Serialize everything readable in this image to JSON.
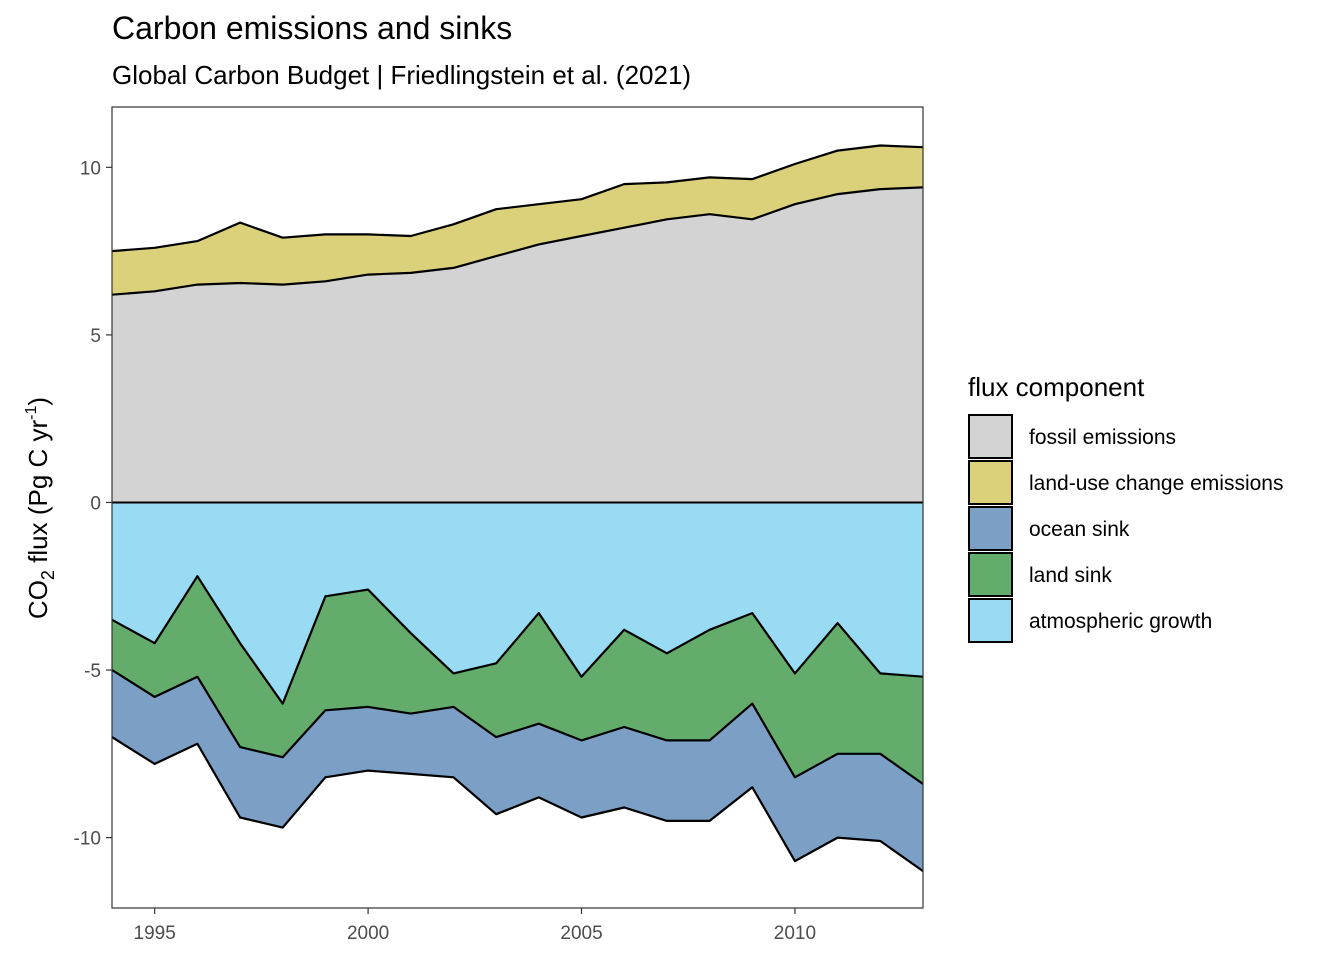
{
  "title": "Carbon emissions and sinks",
  "subtitle": "Global Carbon Budget | Friedlingstein et al. (2021)",
  "chart_data": {
    "type": "area",
    "title": "Carbon emissions and sinks",
    "subtitle": "Global Carbon Budget | Friedlingstein et al. (2021)",
    "xlabel": "",
    "ylabel": "CO2 flux (Pg C yr-1)",
    "ylabel_parts": {
      "main": "CO",
      "sub": "2",
      "mid": " flux (Pg C yr",
      "sup": "-1",
      "end": ")"
    },
    "xlim": [
      1994,
      2013
    ],
    "ylim": [
      -12.1,
      11.8
    ],
    "x_ticks": [
      1995,
      2000,
      2005,
      2010
    ],
    "y_ticks": [
      -10,
      -5,
      0,
      5,
      10
    ],
    "grid": false,
    "legend_title": "flux component",
    "legend_position": "right",
    "x": [
      1994,
      1995,
      1996,
      1997,
      1998,
      1999,
      2000,
      2001,
      2002,
      2003,
      2004,
      2005,
      2006,
      2007,
      2008,
      2009,
      2010,
      2011,
      2012,
      2013
    ],
    "series": [
      {
        "name": "fossil emissions",
        "color": "#d3d3d3",
        "stack": "positive",
        "values": [
          6.2,
          6.3,
          6.5,
          6.55,
          6.5,
          6.6,
          6.8,
          6.85,
          7.0,
          7.35,
          7.7,
          7.95,
          8.2,
          8.45,
          8.6,
          8.45,
          8.9,
          9.2,
          9.35,
          9.4
        ]
      },
      {
        "name": "land-use change emissions",
        "color": "#dbd17b",
        "stack": "positive",
        "values": [
          1.3,
          1.3,
          1.3,
          1.8,
          1.4,
          1.4,
          1.2,
          1.1,
          1.3,
          1.4,
          1.2,
          1.1,
          1.3,
          1.1,
          1.1,
          1.2,
          1.2,
          1.3,
          1.3,
          1.2
        ]
      },
      {
        "name": "atmospheric growth",
        "color": "#98dbf3",
        "stack": "negative",
        "values": [
          -3.5,
          -4.2,
          -2.2,
          -4.2,
          -6.0,
          -2.8,
          -2.6,
          -3.9,
          -5.1,
          -4.8,
          -3.3,
          -5.2,
          -3.8,
          -4.5,
          -3.8,
          -3.3,
          -5.1,
          -3.6,
          -5.1,
          -5.2
        ]
      },
      {
        "name": "land sink",
        "color": "#63ac6c",
        "stack": "negative",
        "values": [
          -1.5,
          -1.6,
          -3.0,
          -3.1,
          -1.6,
          -3.4,
          -3.5,
          -2.4,
          -1.0,
          -2.2,
          -3.3,
          -1.9,
          -2.9,
          -2.6,
          -3.3,
          -2.7,
          -3.1,
          -3.9,
          -2.4,
          -3.2
        ]
      },
      {
        "name": "ocean sink",
        "color": "#7b9fc5",
        "stack": "negative",
        "values": [
          -2.0,
          -2.0,
          -2.0,
          -2.1,
          -2.1,
          -2.0,
          -1.9,
          -1.8,
          -2.1,
          -2.3,
          -2.2,
          -2.3,
          -2.4,
          -2.4,
          -2.4,
          -2.5,
          -2.5,
          -2.5,
          -2.6,
          -2.6
        ]
      }
    ]
  }
}
